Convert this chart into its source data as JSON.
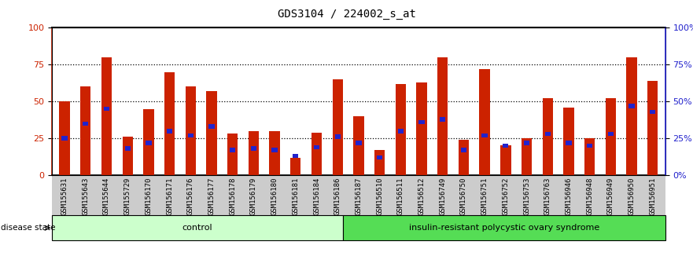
{
  "title": "GDS3104 / 224002_s_at",
  "categories": [
    "GSM155631",
    "GSM155643",
    "GSM155644",
    "GSM155729",
    "GSM156170",
    "GSM156171",
    "GSM156176",
    "GSM156177",
    "GSM156178",
    "GSM156179",
    "GSM156180",
    "GSM156181",
    "GSM156184",
    "GSM156186",
    "GSM156187",
    "GSM156510",
    "GSM156511",
    "GSM156512",
    "GSM156749",
    "GSM156750",
    "GSM156751",
    "GSM156752",
    "GSM156753",
    "GSM156763",
    "GSM156946",
    "GSM156948",
    "GSM156949",
    "GSM156950",
    "GSM156951"
  ],
  "count_values": [
    50,
    60,
    80,
    26,
    45,
    70,
    60,
    57,
    28,
    30,
    30,
    12,
    29,
    65,
    40,
    17,
    62,
    63,
    80,
    24,
    72,
    20,
    25,
    52,
    46,
    25,
    52,
    80,
    64
  ],
  "percentile_values": [
    25,
    35,
    45,
    18,
    22,
    30,
    27,
    33,
    17,
    18,
    17,
    13,
    19,
    26,
    22,
    12,
    30,
    36,
    38,
    17,
    27,
    20,
    22,
    28,
    22,
    20,
    28,
    47,
    43
  ],
  "group_labels": [
    "control",
    "insulin-resistant polycystic ovary syndrome"
  ],
  "group_split": 14,
  "bar_color": "#cc2200",
  "percentile_color": "#2222cc",
  "left_axis_color": "#cc2200",
  "right_axis_color": "#2222cc",
  "yticks": [
    0,
    25,
    50,
    75,
    100
  ],
  "ylim": [
    0,
    100
  ],
  "background_color": "#ffffff",
  "plot_bg_color": "#ffffff",
  "label_area_bg": "#cccccc",
  "group_bg_control": "#ccffcc",
  "group_bg_pcos": "#55dd55"
}
